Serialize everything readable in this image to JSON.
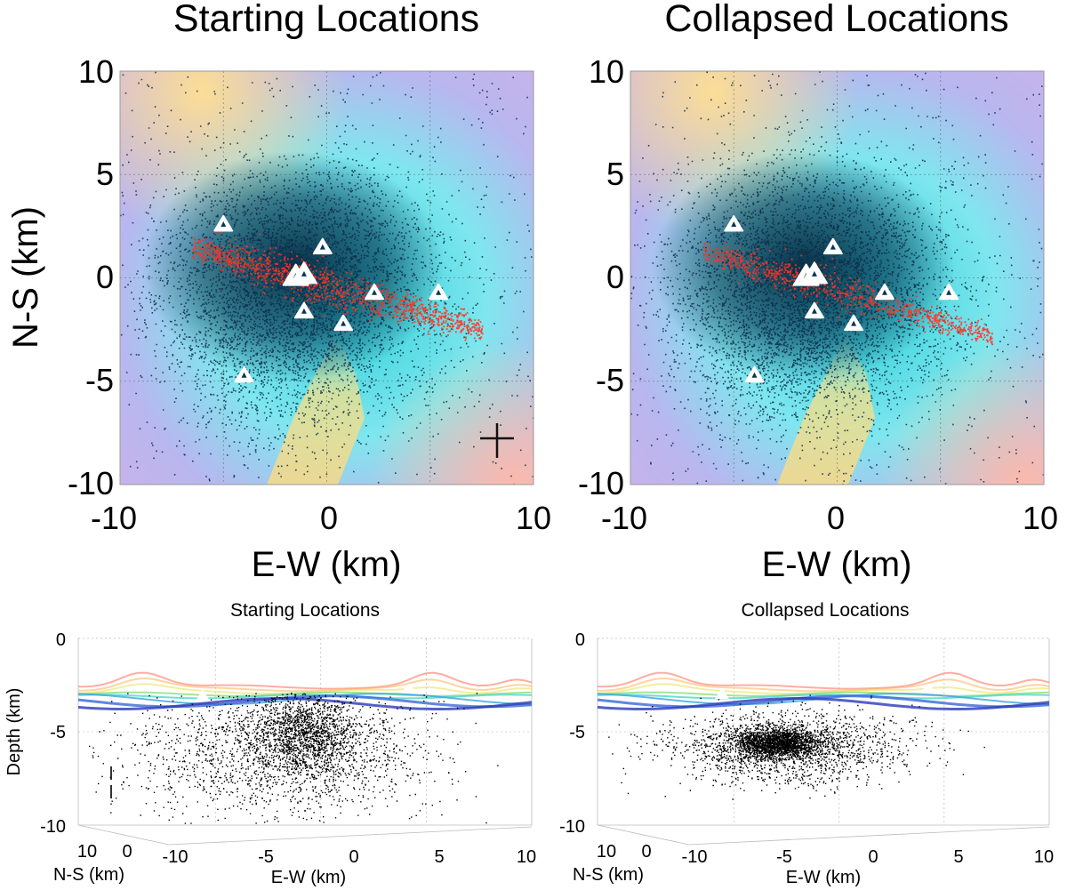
{
  "chart_data": [
    {
      "type": "scatter",
      "view": "map",
      "title": "Starting Locations",
      "xlabel": "E-W (km)",
      "ylabel": "N-S (km)",
      "xlim": [
        -10,
        10
      ],
      "ylim": [
        -10,
        10
      ],
      "xticks": [
        "-10",
        "0",
        "10"
      ],
      "yticks": [
        "10",
        "5",
        "0",
        "-5",
        "-10"
      ],
      "grid": true,
      "background": "shaded relief / velocity colormap",
      "series": [
        {
          "name": "earthquake locations",
          "color": "#0b2a4a",
          "distribution": "diffuse cloud centered near (-1, -1)"
        },
        {
          "name": "projected line locations",
          "color": "#ff3322",
          "endpoints": [
            [
              -6.5,
              1.5
            ],
            [
              7.5,
              -2.5
            ]
          ]
        },
        {
          "name": "stations",
          "color": "#ffffff",
          "marker": "triangle",
          "points": [
            [
              -5,
              2.6
            ],
            [
              -0.2,
              1.5
            ],
            [
              -1.5,
              0.1
            ],
            [
              -1.1,
              0.2
            ],
            [
              2.3,
              -0.7
            ],
            [
              5.4,
              -0.7
            ],
            [
              -1.1,
              -1.6
            ],
            [
              0.8,
              -2.2
            ],
            [
              -4,
              -4.7
            ]
          ]
        }
      ],
      "annotations": [
        "error-cross"
      ]
    },
    {
      "type": "scatter",
      "view": "map",
      "title": "Collapsed Locations",
      "xlabel": "E-W (km)",
      "ylabel": "N-S (km)",
      "xlim": [
        -10,
        10
      ],
      "ylim": [
        -10,
        10
      ],
      "xticks": [
        "-10",
        "0",
        "10"
      ],
      "yticks": [
        "10",
        "5",
        "0",
        "-5",
        "-10"
      ],
      "grid": true,
      "background": "shaded relief / velocity colormap",
      "series": [
        {
          "name": "earthquake locations",
          "color": "#0b2a4a",
          "distribution": "diffuse cloud centered near (-1, -1)"
        },
        {
          "name": "projected line locations",
          "color": "#ff3322",
          "endpoints": [
            [
              -6.5,
              1.3
            ],
            [
              7.5,
              -2.8
            ]
          ]
        },
        {
          "name": "stations",
          "color": "#ffffff",
          "marker": "triangle",
          "points": [
            [
              -5,
              2.6
            ],
            [
              -0.2,
              1.5
            ],
            [
              -1.5,
              0.1
            ],
            [
              -1.1,
              0.2
            ],
            [
              2.3,
              -0.7
            ],
            [
              5.4,
              -0.7
            ],
            [
              -1.1,
              -1.6
            ],
            [
              0.8,
              -2.2
            ],
            [
              -4,
              -4.7
            ]
          ]
        }
      ]
    },
    {
      "type": "scatter",
      "view": "3d-section",
      "title": "Starting Locations",
      "xlabel": "E-W (km)",
      "ylabel": "N-S (km)",
      "zlabel": "Depth (km)",
      "xticks": [
        "-10",
        "-5",
        "0",
        "5",
        "10"
      ],
      "ns_ticks": [
        "10",
        "0"
      ],
      "zticks": [
        "0",
        "-5",
        "-10"
      ],
      "xlim": [
        -10,
        10
      ],
      "zlim": [
        -10,
        0
      ],
      "grid": true,
      "series": [
        {
          "name": "hypocenters",
          "color": "#000000",
          "distribution": "broad cloud, depth -3 to -10 km, densest near x=0, z=-5"
        },
        {
          "name": "topography surface",
          "color": "rainbow",
          "depth_range": [
            -3.3,
            -1.2
          ]
        }
      ],
      "annotations": [
        "error-bar"
      ]
    },
    {
      "type": "scatter",
      "view": "3d-section",
      "title": "Collapsed Locations",
      "xlabel": "E-W (km)",
      "ylabel": "N-S (km)",
      "zlabel": "Depth (km)",
      "xticks": [
        "-10",
        "-5",
        "0",
        "5",
        "10"
      ],
      "ns_ticks": [
        "10",
        "0"
      ],
      "zticks": [
        "0",
        "-5",
        "-10"
      ],
      "xlim": [
        -10,
        10
      ],
      "zlim": [
        -10,
        0
      ],
      "grid": true,
      "series": [
        {
          "name": "hypocenters",
          "color": "#000000",
          "distribution": "concentrated cluster near x=-3, z=-5.6"
        },
        {
          "name": "topography surface",
          "color": "rainbow",
          "depth_range": [
            -3.3,
            -1.2
          ]
        }
      ]
    }
  ]
}
